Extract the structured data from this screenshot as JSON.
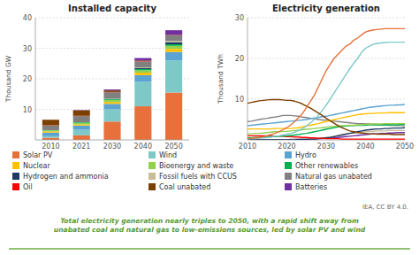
{
  "chart_data": [
    {
      "type": "bar",
      "title": "Installed capacity",
      "ylabel": "Thousand GW",
      "stacked": true,
      "grid": true,
      "legend": "bottom",
      "categories": [
        "2010",
        "2021",
        "2030",
        "2040",
        "2050"
      ],
      "ylim": [
        0,
        40
      ],
      "yticks": [
        10,
        20,
        30,
        40
      ],
      "series": [
        {
          "name": "Solar PV",
          "color": "#E8703A",
          "values": [
            0.7,
            1.5,
            6.0,
            11.0,
            15.5
          ]
        },
        {
          "name": "Wind",
          "color": "#7EC8C8",
          "values": [
            0.5,
            1.8,
            4.0,
            8.0,
            10.5
          ]
        },
        {
          "name": "Hydro",
          "color": "#5BA3D0",
          "values": [
            1.2,
            1.4,
            1.8,
            2.2,
            2.8
          ]
        },
        {
          "name": "Nuclear",
          "color": "#FFC000",
          "values": [
            0.4,
            0.4,
            0.6,
            0.8,
            1.0
          ]
        },
        {
          "name": "Bioenergy and waste",
          "color": "#92D050",
          "values": [
            0.3,
            0.5,
            0.7,
            0.8,
            1.0
          ]
        },
        {
          "name": "Other renewables",
          "color": "#00B050",
          "values": [
            0.1,
            0.2,
            0.3,
            0.4,
            0.5
          ]
        },
        {
          "name": "Hydrogen and ammonia",
          "color": "#203864",
          "values": [
            0.0,
            0.0,
            0.1,
            0.3,
            0.7
          ]
        },
        {
          "name": "Fossil fuels with CCUS",
          "color": "#C9BD98",
          "values": [
            0.0,
            0.0,
            0.1,
            0.2,
            0.4
          ]
        },
        {
          "name": "Natural gas unabated",
          "color": "#808080",
          "values": [
            1.5,
            2.0,
            2.0,
            2.0,
            1.8
          ]
        },
        {
          "name": "Oil",
          "color": "#FF0000",
          "values": [
            0.1,
            0.1,
            0.1,
            0.1,
            0.1
          ]
        },
        {
          "name": "Coal unabated",
          "color": "#7B3F00",
          "values": [
            1.8,
            1.8,
            0.5,
            0.2,
            0.1
          ]
        },
        {
          "name": "Batteries",
          "color": "#7030A0",
          "values": [
            0.0,
            0.1,
            0.3,
            0.8,
            1.5
          ]
        }
      ],
      "annotations": [
        "IEA, CC BY 4.0.",
        "Total electricity generation nearly triples to 2050, with a rapid shift away from\nunabated coal and natural gas to low-emissions sources, led by solar PV and wind"
      ]
    },
    {
      "type": "line",
      "title": "Electricity generation",
      "ylabel": "Thousand TWh",
      "grid": true,
      "x": [
        2010,
        2011,
        2012,
        2013,
        2014,
        2015,
        2016,
        2017,
        2018,
        2019,
        2020,
        2021,
        2022,
        2023,
        2024,
        2025,
        2026,
        2027,
        2028,
        2029,
        2030,
        2031,
        2032,
        2033,
        2034,
        2035,
        2036,
        2037,
        2038,
        2039,
        2040,
        2041,
        2042,
        2043,
        2044,
        2045,
        2046,
        2047,
        2048,
        2049,
        2050
      ],
      "xlim": [
        2010,
        2050
      ],
      "xticks": [
        2010,
        2020,
        2030,
        2040,
        2050
      ],
      "ylim": [
        0,
        30
      ],
      "yticks": [
        10,
        20,
        30
      ],
      "series": [
        {
          "name": "Batteries",
          "color": "#7030A0",
          "values": [
            0.0,
            0.0,
            0.0,
            0.0,
            0.0,
            0.0,
            0.0,
            0.0,
            0.0,
            0.0,
            0.0,
            0.1,
            0.1,
            0.1,
            0.1,
            0.1,
            0.2,
            0.2,
            0.3,
            0.3,
            0.4,
            0.4,
            0.5,
            0.6,
            0.7,
            0.8,
            0.9,
            1.0,
            1.1,
            1.2,
            1.3,
            1.4,
            1.5,
            1.5,
            1.6,
            1.6,
            1.7,
            1.7,
            1.8,
            1.8,
            1.8
          ]
        },
        {
          "name": "Fossil fuels with CCUS",
          "color": "#C9BD98",
          "values": [
            0.0,
            0.0,
            0.0,
            0.0,
            0.0,
            0.0,
            0.0,
            0.0,
            0.0,
            0.0,
            0.0,
            0.0,
            0.1,
            0.1,
            0.1,
            0.2,
            0.2,
            0.3,
            0.4,
            0.5,
            0.6,
            0.7,
            0.9,
            1.1,
            1.3,
            1.5,
            1.6,
            1.7,
            1.8,
            1.9,
            2.0,
            2.1,
            2.1,
            2.2,
            2.2,
            2.2,
            2.3,
            2.3,
            2.3,
            2.3,
            2.3
          ]
        },
        {
          "name": "Hydrogen and ammonia",
          "color": "#203864",
          "values": [
            0.0,
            0.0,
            0.0,
            0.0,
            0.0,
            0.0,
            0.0,
            0.0,
            0.0,
            0.0,
            0.0,
            0.0,
            0.0,
            0.1,
            0.1,
            0.1,
            0.2,
            0.2,
            0.3,
            0.4,
            0.5,
            0.6,
            0.8,
            1.0,
            1.2,
            1.4,
            1.6,
            1.8,
            2.0,
            2.2,
            2.4,
            2.5,
            2.6,
            2.7,
            2.7,
            2.8,
            2.8,
            2.9,
            2.9,
            2.9,
            3.0
          ]
        },
        {
          "name": "Oil",
          "color": "#FF0000",
          "values": [
            1.0,
            1.0,
            1.0,
            1.0,
            1.0,
            1.0,
            1.0,
            0.9,
            0.9,
            0.9,
            0.8,
            0.8,
            0.7,
            0.7,
            0.6,
            0.6,
            0.5,
            0.5,
            0.4,
            0.4,
            0.3,
            0.3,
            0.3,
            0.3,
            0.2,
            0.2,
            0.2,
            0.2,
            0.2,
            0.2,
            0.2,
            0.2,
            0.2,
            0.2,
            0.2,
            0.2,
            0.2,
            0.2,
            0.2,
            0.2,
            0.2
          ]
        },
        {
          "name": "Natural gas unabated",
          "color": "#808080",
          "values": [
            4.5,
            4.6,
            4.8,
            5.0,
            5.2,
            5.3,
            5.5,
            5.6,
            5.8,
            6.0,
            6.0,
            6.0,
            5.9,
            5.8,
            5.6,
            5.5,
            5.3,
            5.2,
            5.0,
            4.9,
            4.8,
            4.7,
            4.6,
            4.5,
            4.4,
            4.3,
            4.2,
            4.1,
            4.0,
            4.0,
            3.9,
            3.9,
            3.8,
            3.8,
            3.7,
            3.7,
            3.6,
            3.6,
            3.5,
            3.5,
            3.5
          ]
        },
        {
          "name": "Other renewables",
          "color": "#00B050",
          "values": [
            0.5,
            0.5,
            0.6,
            0.6,
            0.7,
            0.7,
            0.8,
            0.8,
            0.9,
            0.9,
            1.0,
            1.1,
            1.2,
            1.3,
            1.5,
            1.6,
            1.8,
            2.0,
            2.2,
            2.4,
            2.6,
            2.8,
            3.0,
            3.2,
            3.3,
            3.4,
            3.5,
            3.5,
            3.6,
            3.6,
            3.6,
            3.7,
            3.7,
            3.7,
            3.7,
            3.7,
            3.7,
            3.7,
            3.7,
            3.8,
            3.8
          ]
        },
        {
          "name": "Bioenergy and waste",
          "color": "#92D050",
          "values": [
            1.5,
            1.5,
            1.6,
            1.6,
            1.7,
            1.8,
            1.9,
            2.0,
            2.0,
            2.1,
            2.1,
            2.2,
            2.3,
            2.4,
            2.5,
            2.6,
            2.7,
            2.8,
            2.9,
            3.0,
            3.1,
            3.2,
            3.3,
            3.4,
            3.5,
            3.5,
            3.6,
            3.6,
            3.7,
            3.7,
            3.8,
            3.8,
            3.9,
            3.9,
            3.9,
            4.0,
            4.0,
            4.0,
            4.0,
            4.0,
            4.0
          ]
        },
        {
          "name": "Nuclear",
          "color": "#FFC000",
          "values": [
            2.7,
            2.7,
            2.7,
            2.7,
            2.7,
            2.7,
            2.7,
            2.8,
            2.8,
            2.8,
            2.8,
            2.8,
            2.9,
            3.0,
            3.2,
            3.4,
            3.6,
            3.8,
            4.0,
            4.3,
            4.5,
            4.7,
            5.0,
            5.2,
            5.4,
            5.6,
            5.8,
            6.0,
            6.2,
            6.3,
            6.4,
            6.5,
            6.5,
            6.6,
            6.6,
            6.6,
            6.7,
            6.7,
            6.7,
            6.7,
            6.7
          ]
        },
        {
          "name": "Hydro",
          "color": "#5BA3D0",
          "values": [
            3.5,
            3.6,
            3.7,
            3.8,
            3.9,
            4.0,
            4.1,
            4.2,
            4.3,
            4.4,
            4.5,
            4.6,
            4.7,
            4.8,
            4.9,
            5.0,
            5.2,
            5.4,
            5.5,
            5.7,
            5.8,
            6.0,
            6.2,
            6.4,
            6.6,
            6.8,
            7.0,
            7.2,
            7.4,
            7.6,
            7.8,
            8.0,
            8.1,
            8.2,
            8.3,
            8.4,
            8.5,
            8.5,
            8.6,
            8.6,
            8.7
          ]
        },
        {
          "name": "Wind",
          "color": "#7EC8C8",
          "values": [
            0.2,
            0.3,
            0.3,
            0.4,
            0.5,
            0.6,
            0.7,
            0.9,
            1.0,
            1.2,
            1.4,
            1.6,
            1.9,
            2.3,
            2.8,
            3.4,
            4.2,
            5.0,
            6.0,
            7.2,
            8.5,
            10.0,
            11.5,
            13.0,
            14.5,
            16.0,
            17.5,
            18.8,
            20.0,
            21.5,
            22.5,
            23.0,
            23.5,
            23.7,
            23.8,
            23.9,
            24.0,
            24.0,
            24.0,
            24.0,
            24.0
          ]
        },
        {
          "name": "Coal unabated",
          "color": "#7B3F00",
          "values": [
            9.0,
            9.2,
            9.4,
            9.6,
            9.7,
            9.8,
            9.9,
            9.9,
            9.9,
            9.8,
            9.7,
            9.7,
            9.5,
            9.2,
            8.8,
            8.3,
            7.8,
            7.2,
            6.6,
            6.0,
            5.3,
            4.7,
            4.1,
            3.5,
            3.0,
            2.6,
            2.2,
            2.0,
            1.8,
            1.7,
            1.6,
            1.5,
            1.5,
            1.4,
            1.4,
            1.4,
            1.4,
            1.3,
            1.3,
            1.3,
            1.3
          ]
        },
        {
          "name": "Solar PV",
          "color": "#E8703A",
          "values": [
            0.3,
            0.4,
            0.5,
            0.6,
            0.8,
            1.0,
            1.3,
            1.6,
            2.0,
            2.5,
            3.0,
            3.7,
            4.5,
            5.5,
            6.5,
            8.0,
            9.5,
            11.0,
            13.0,
            15.0,
            17.0,
            18.5,
            20.0,
            21.0,
            22.0,
            23.0,
            23.5,
            24.5,
            25.0,
            25.8,
            26.5,
            26.8,
            27.0,
            27.1,
            27.2,
            27.3,
            27.3,
            27.3,
            27.3,
            27.3,
            27.3
          ]
        }
      ]
    }
  ]
}
